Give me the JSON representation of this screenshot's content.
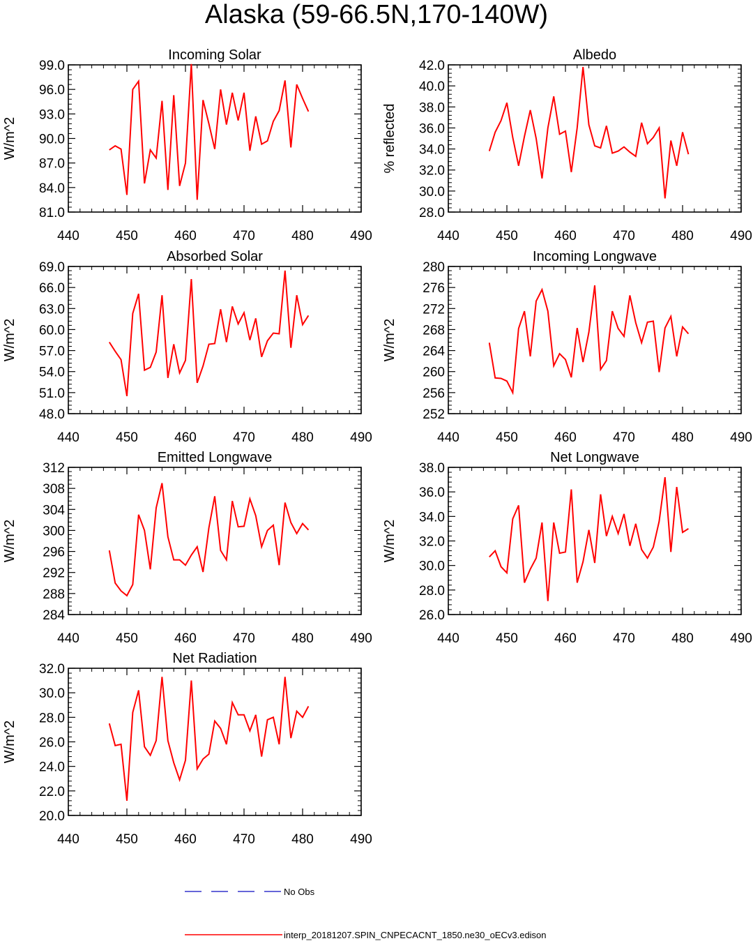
{
  "figure": {
    "title": "Alaska (59-66.5N,170-140W)",
    "line_color": "#ff0000",
    "obs_color": "#3333cc",
    "legend": {
      "obs_label": "No Obs",
      "model_label": "interp_20181207.SPIN_CNPECACNT_1850.ne30_oECv3.edison"
    }
  },
  "chart_data": [
    {
      "type": "line",
      "title": "Incoming Solar",
      "ylabel": "W/m^2",
      "xlim": [
        440,
        490
      ],
      "x_ticks": [
        440,
        450,
        460,
        470,
        480,
        490
      ],
      "ylim": [
        81.0,
        99.0
      ],
      "y_ticks": [
        "81.0",
        "84.0",
        "87.0",
        "90.0",
        "93.0",
        "96.0",
        "99.0"
      ],
      "x": [
        447,
        448,
        449,
        450,
        451,
        452,
        453,
        454,
        455,
        456,
        457,
        458,
        459,
        460,
        461,
        462,
        463,
        464,
        465,
        466,
        467,
        468,
        469,
        470,
        471,
        472,
        473,
        474,
        475,
        476,
        477,
        478,
        479,
        480,
        481
      ],
      "y": [
        88.6,
        89.1,
        88.7,
        83.1,
        96.0,
        97.0,
        84.5,
        88.6,
        87.6,
        94.6,
        83.7,
        95.3,
        84.2,
        87.0,
        99.1,
        82.5,
        94.7,
        91.8,
        88.7,
        96.0,
        91.7,
        95.6,
        92.2,
        95.6,
        88.5,
        92.7,
        89.3,
        89.7,
        92.1,
        93.4,
        97.1,
        88.9,
        96.6,
        94.9,
        93.3
      ]
    },
    {
      "type": "line",
      "title": "Albedo",
      "ylabel": "% reflected",
      "xlim": [
        440,
        490
      ],
      "x_ticks": [
        440,
        450,
        460,
        470,
        480,
        490
      ],
      "ylim": [
        28.0,
        42.0
      ],
      "y_ticks": [
        "28.0",
        "30.0",
        "32.0",
        "34.0",
        "36.0",
        "38.0",
        "40.0",
        "42.0"
      ],
      "x": [
        447,
        448,
        449,
        450,
        451,
        452,
        453,
        454,
        455,
        456,
        457,
        458,
        459,
        460,
        461,
        462,
        463,
        464,
        465,
        466,
        467,
        468,
        469,
        470,
        471,
        472,
        473,
        474,
        475,
        476,
        477,
        478,
        479,
        480,
        481
      ],
      "y": [
        33.8,
        35.6,
        36.7,
        38.4,
        35.1,
        32.4,
        35.2,
        37.7,
        35.0,
        31.2,
        36.0,
        39.0,
        35.4,
        35.7,
        31.8,
        36.0,
        41.8,
        36.3,
        34.3,
        34.1,
        36.2,
        33.6,
        33.8,
        34.2,
        33.7,
        33.3,
        36.5,
        34.5,
        35.1,
        36.0,
        29.3,
        34.8,
        32.4,
        35.6,
        33.5
      ]
    },
    {
      "type": "line",
      "title": "Absorbed Solar",
      "ylabel": "W/m^2",
      "xlim": [
        440,
        490
      ],
      "x_ticks": [
        440,
        450,
        460,
        470,
        480,
        490
      ],
      "ylim": [
        48.0,
        69.0
      ],
      "y_ticks": [
        "48.0",
        "51.0",
        "54.0",
        "57.0",
        "60.0",
        "63.0",
        "66.0",
        "69.0"
      ],
      "x": [
        447,
        448,
        449,
        450,
        451,
        452,
        453,
        454,
        455,
        456,
        457,
        458,
        459,
        460,
        461,
        462,
        463,
        464,
        465,
        466,
        467,
        468,
        469,
        470,
        471,
        472,
        473,
        474,
        475,
        476,
        477,
        478,
        479,
        480,
        481
      ],
      "y": [
        58.2,
        56.9,
        55.7,
        50.5,
        62.3,
        65.1,
        54.2,
        54.6,
        56.8,
        64.9,
        53.1,
        57.9,
        53.8,
        55.6,
        67.2,
        52.4,
        54.8,
        57.9,
        58.0,
        62.9,
        58.2,
        63.3,
        60.8,
        62.4,
        58.5,
        61.6,
        56.1,
        58.4,
        59.5,
        59.4,
        68.4,
        57.4,
        64.9,
        60.7,
        62.0
      ]
    },
    {
      "type": "line",
      "title": "Incoming Longwave",
      "ylabel": "W/m^2",
      "xlim": [
        440,
        490
      ],
      "x_ticks": [
        440,
        450,
        460,
        470,
        480,
        490
      ],
      "ylim": [
        252,
        280
      ],
      "y_ticks": [
        "252",
        "256",
        "260",
        "264",
        "268",
        "272",
        "276",
        "280"
      ],
      "x": [
        447,
        448,
        449,
        450,
        451,
        452,
        453,
        454,
        455,
        456,
        457,
        458,
        459,
        460,
        461,
        462,
        463,
        464,
        465,
        466,
        467,
        468,
        469,
        470,
        471,
        472,
        473,
        474,
        475,
        476,
        477,
        478,
        479,
        480,
        481
      ],
      "y": [
        265.5,
        258.8,
        258.7,
        258.2,
        256.0,
        268.2,
        271.5,
        262.9,
        273.4,
        275.6,
        271.5,
        261.1,
        263.4,
        262.3,
        258.9,
        268.3,
        261.8,
        267.5,
        276.4,
        260.4,
        262.1,
        271.5,
        268.2,
        266.7,
        274.5,
        269.3,
        265.5,
        269.4,
        269.6,
        259.9,
        268.3,
        270.5,
        262.9,
        268.5,
        267.2
      ]
    },
    {
      "type": "line",
      "title": "Emitted Longwave",
      "ylabel": "W/m^2",
      "xlim": [
        440,
        490
      ],
      "x_ticks": [
        440,
        450,
        460,
        470,
        480,
        490
      ],
      "ylim": [
        284,
        312
      ],
      "y_ticks": [
        "284",
        "288",
        "292",
        "296",
        "300",
        "304",
        "308",
        "312"
      ],
      "x": [
        447,
        448,
        449,
        450,
        451,
        452,
        453,
        454,
        455,
        456,
        457,
        458,
        459,
        460,
        461,
        462,
        463,
        464,
        465,
        466,
        467,
        468,
        469,
        470,
        471,
        472,
        473,
        474,
        475,
        476,
        477,
        478,
        479,
        480,
        481
      ],
      "y": [
        296.2,
        290.0,
        288.5,
        287.6,
        289.7,
        303.0,
        300.0,
        292.6,
        304.3,
        309.0,
        298.8,
        294.4,
        294.4,
        293.4,
        295.3,
        296.9,
        292.1,
        300.5,
        306.5,
        296.2,
        294.4,
        305.6,
        300.7,
        300.8,
        306.0,
        302.8,
        296.9,
        300.0,
        301.0,
        293.4,
        305.3,
        301.5,
        299.4,
        301.3,
        300.1
      ]
    },
    {
      "type": "line",
      "title": "Net Longwave",
      "ylabel": "W/m^2",
      "xlim": [
        440,
        490
      ],
      "x_ticks": [
        440,
        450,
        460,
        470,
        480,
        490
      ],
      "ylim": [
        26.0,
        38.0
      ],
      "y_ticks": [
        "26.0",
        "28.0",
        "30.0",
        "32.0",
        "34.0",
        "36.0",
        "38.0"
      ],
      "x": [
        447,
        448,
        449,
        450,
        451,
        452,
        453,
        454,
        455,
        456,
        457,
        458,
        459,
        460,
        461,
        462,
        463,
        464,
        465,
        466,
        467,
        468,
        469,
        470,
        471,
        472,
        473,
        474,
        475,
        476,
        477,
        478,
        479,
        480,
        481
      ],
      "y": [
        30.7,
        31.2,
        29.9,
        29.4,
        33.8,
        34.9,
        28.6,
        29.7,
        30.6,
        33.5,
        27.1,
        33.5,
        31.0,
        31.1,
        36.2,
        28.6,
        30.3,
        32.9,
        30.2,
        35.8,
        32.4,
        34.0,
        32.6,
        34.2,
        31.6,
        33.4,
        31.3,
        30.6,
        31.5,
        33.6,
        37.2,
        31.1,
        36.4,
        32.7,
        33.0
      ]
    },
    {
      "type": "line",
      "title": "Net Radiation",
      "ylabel": "W/m^2",
      "xlim": [
        440,
        490
      ],
      "x_ticks": [
        440,
        450,
        460,
        470,
        480,
        490
      ],
      "ylim": [
        20.0,
        32.0
      ],
      "y_ticks": [
        "20.0",
        "22.0",
        "24.0",
        "26.0",
        "28.0",
        "30.0",
        "32.0"
      ],
      "x": [
        447,
        448,
        449,
        450,
        451,
        452,
        453,
        454,
        455,
        456,
        457,
        458,
        459,
        460,
        461,
        462,
        463,
        464,
        465,
        466,
        467,
        468,
        469,
        470,
        471,
        472,
        473,
        474,
        475,
        476,
        477,
        478,
        479,
        480,
        481
      ],
      "y": [
        27.5,
        25.7,
        25.8,
        21.2,
        28.4,
        30.2,
        25.6,
        24.9,
        26.1,
        31.3,
        26.1,
        24.3,
        22.9,
        24.5,
        31.0,
        23.8,
        24.6,
        25.0,
        27.7,
        27.1,
        25.8,
        29.2,
        28.2,
        28.2,
        26.9,
        28.2,
        24.8,
        27.8,
        28.0,
        25.8,
        31.3,
        26.3,
        28.5,
        28.0,
        28.9
      ]
    }
  ]
}
